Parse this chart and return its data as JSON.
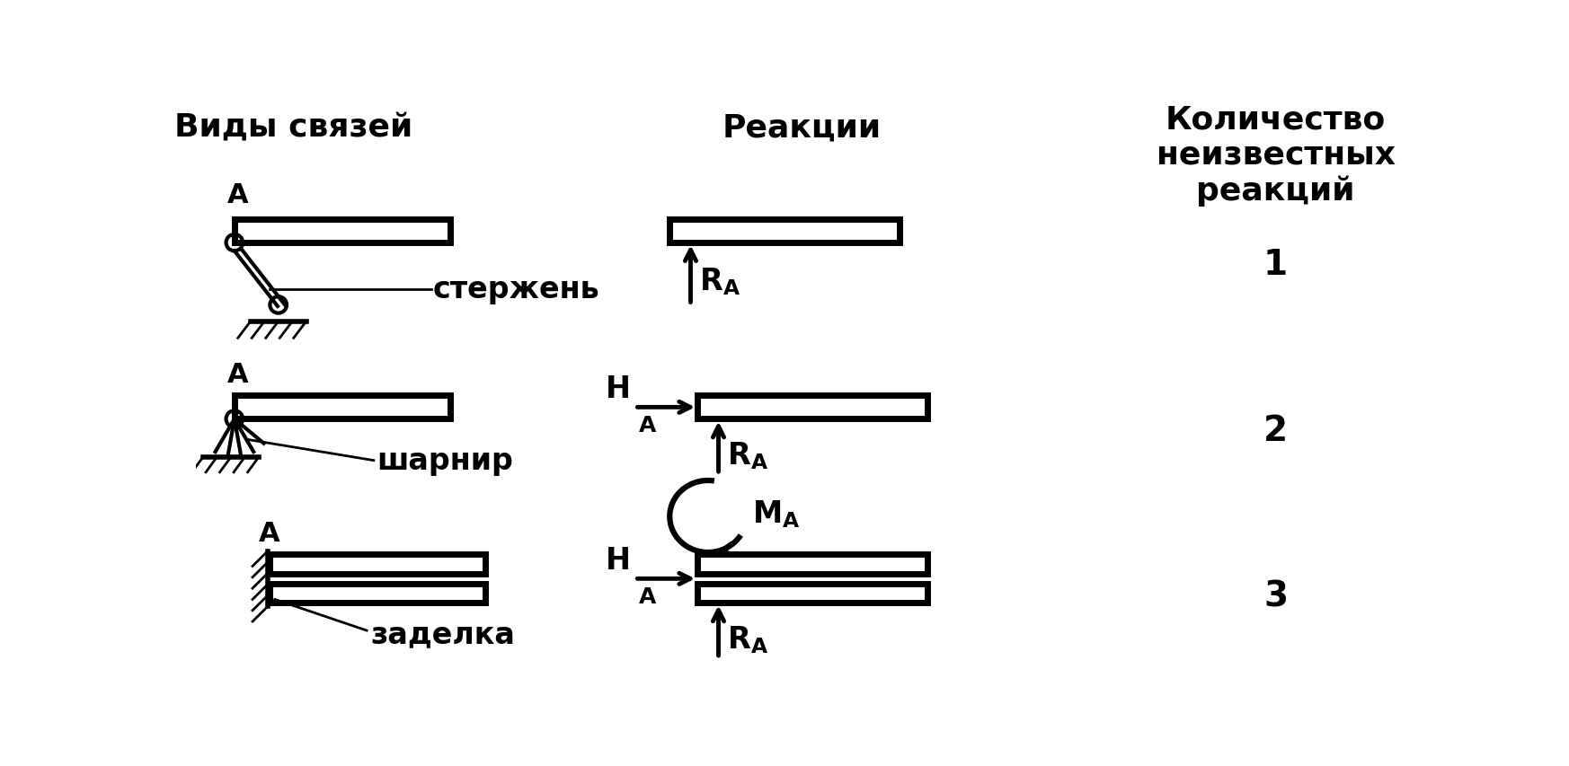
{
  "title_col1": "Виды связей",
  "title_col2": "Реакции",
  "title_col3": "Количество\nнеизвестных\nреакций",
  "label_sterjen": "стержень",
  "label_sharnir": "шарнир",
  "label_zadelka": "заделка",
  "label_A": "A",
  "numbers": [
    "1",
    "2",
    "3"
  ],
  "bg_color": "#ffffff",
  "fg_color": "#000000",
  "font_size_title": 26,
  "font_size_label": 24,
  "font_size_A": 22,
  "font_size_number": 28
}
